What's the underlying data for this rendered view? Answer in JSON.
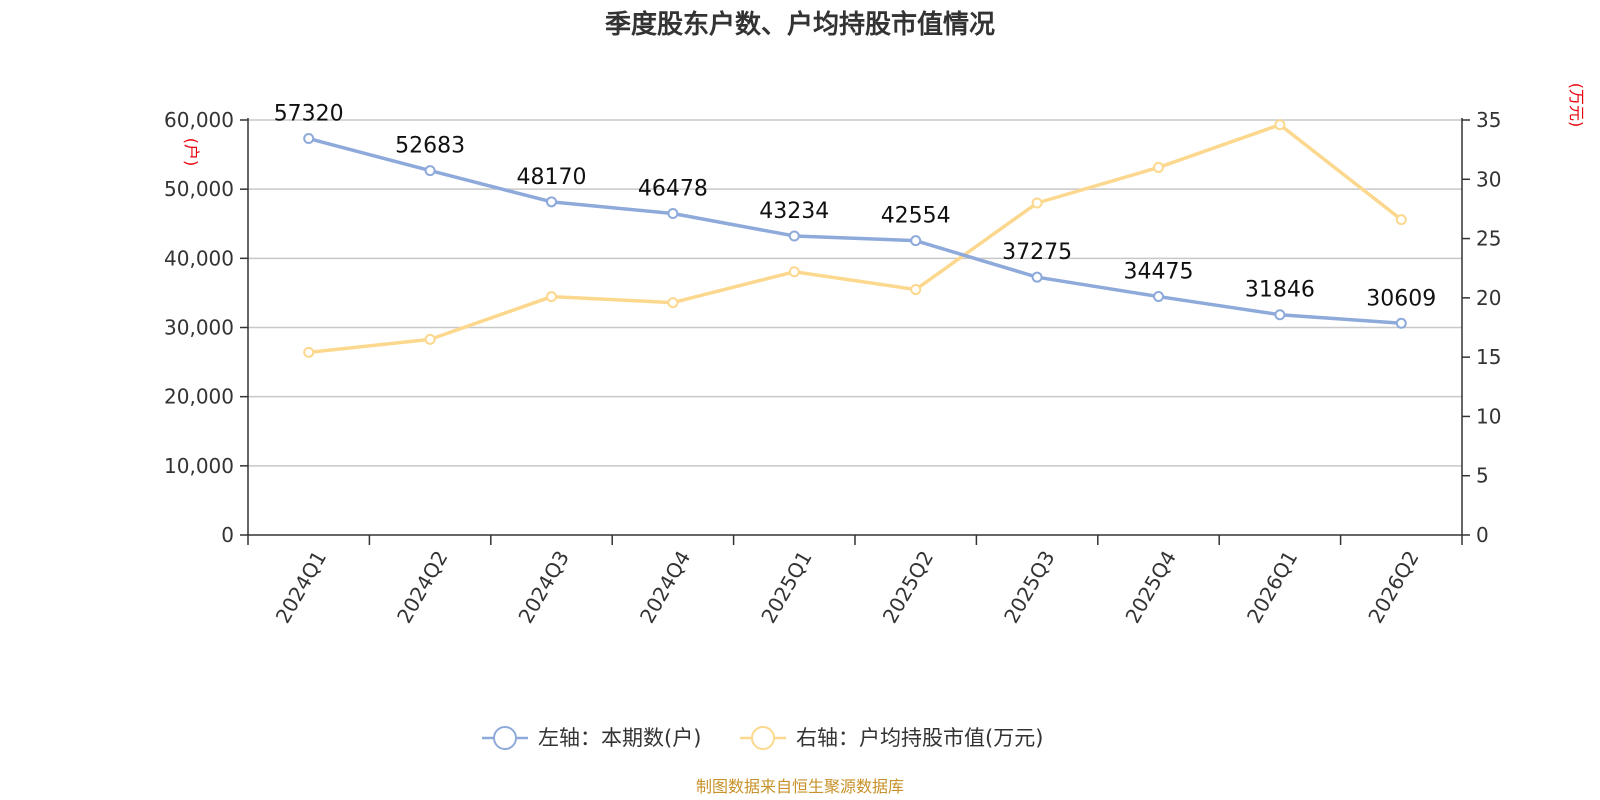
{
  "chart_data": {
    "type": "line",
    "title": "季度股东户数、户均持股市值情况",
    "categories": [
      "2024Q1",
      "2024Q2",
      "2024Q3",
      "2024Q4",
      "2025Q1",
      "2025Q2",
      "2025Q3",
      "2025Q4",
      "2026Q1",
      "2026Q2"
    ],
    "left_axis": {
      "unit": "(户)",
      "ylim": [
        0,
        60000
      ],
      "ticks": [
        "0",
        "10,000",
        "20,000",
        "30,000",
        "40,000",
        "50,000",
        "60,000"
      ]
    },
    "right_axis": {
      "unit": "(万元)",
      "ylim": [
        0,
        35
      ],
      "ticks": [
        "0",
        "5",
        "10",
        "15",
        "20",
        "25",
        "30",
        "35"
      ]
    },
    "grid": true,
    "legend_position": "bottom",
    "series": [
      {
        "name": "左轴：本期数(户)",
        "axis": "left",
        "color": "#8eaadb",
        "values": [
          57320,
          52683,
          48170,
          46478,
          43234,
          42554,
          37275,
          34475,
          31846,
          30609
        ],
        "labels": [
          "57320",
          "52683",
          "48170",
          "46478",
          "43234",
          "42554",
          "37275",
          "34475",
          "31846",
          "30609"
        ]
      },
      {
        "name": "右轴：户均持股市值(万元)",
        "axis": "right",
        "color": "#fcd88e",
        "values": [
          15.4,
          16.5,
          20.1,
          19.6,
          22.2,
          20.7,
          28.0,
          31.0,
          34.6,
          26.6
        ]
      }
    ],
    "source": "制图数据来自恒生聚源数据库"
  }
}
